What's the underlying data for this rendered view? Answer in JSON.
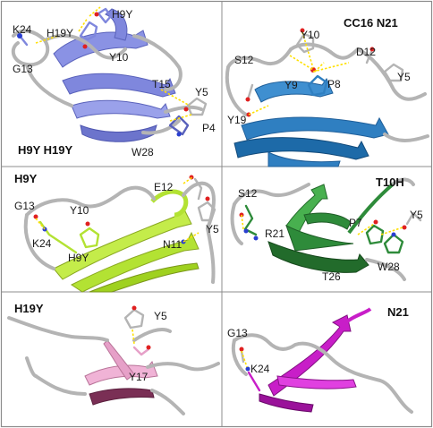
{
  "panels": [
    {
      "title": "H9Y H19Y",
      "color": "#7f87dd",
      "residues": [
        "K24",
        "H19Y",
        "H9Y",
        "Y10",
        "G13",
        "T15",
        "Y5",
        "P4",
        "W28"
      ]
    },
    {
      "title": "CC16 N21",
      "color": "#2f7fc1",
      "residues": [
        "Y10",
        "S12",
        "D12",
        "Y9",
        "P8",
        "Y5",
        "Y19"
      ]
    },
    {
      "title": "H9Y",
      "color": "#b3e233",
      "residues": [
        "G13",
        "Y10",
        "E12",
        "K24",
        "H9Y",
        "N11",
        "Y5"
      ]
    },
    {
      "title": "T10H",
      "color": "#2e8b3a",
      "residues": [
        "S12",
        "R21",
        "P7",
        "Y5",
        "W28",
        "T26"
      ]
    },
    {
      "title": "H19Y",
      "color": "#e6a0c8",
      "residues": [
        "Y5",
        "Y17"
      ]
    },
    {
      "title": "N21",
      "color": "#c81ec8",
      "residues": [
        "G13",
        "K24"
      ]
    }
  ],
  "colors": {
    "coil": "#b4b4b4",
    "hbond": "#ffe000",
    "oxygen": "#e02020",
    "nitrogen": "#2a3fd0",
    "border": "#8c8c8c"
  }
}
